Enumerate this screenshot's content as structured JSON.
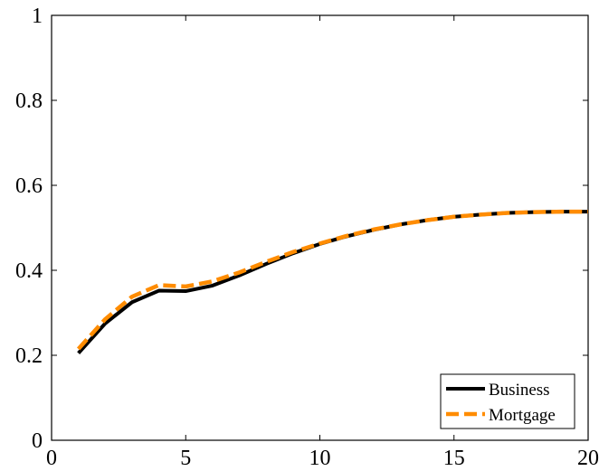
{
  "chart_data": {
    "type": "line",
    "title": "",
    "xlabel": "",
    "ylabel": "",
    "xlim": [
      0,
      20
    ],
    "ylim": [
      0,
      1
    ],
    "xticks": [
      0,
      5,
      10,
      15,
      20
    ],
    "yticks": [
      0,
      0.2,
      0.4,
      0.6,
      0.8,
      1
    ],
    "x_tick_labels": [
      "0",
      "5",
      "10",
      "15",
      "20"
    ],
    "y_tick_labels": [
      "0",
      "0.2",
      "0.4",
      "0.6",
      "0.8",
      "1"
    ],
    "grid": false,
    "legend_position": "bottom-right",
    "x": [
      1,
      2,
      3,
      4,
      5,
      6,
      7,
      8,
      9,
      10,
      11,
      12,
      13,
      14,
      15,
      16,
      17,
      18,
      19,
      20
    ],
    "series": [
      {
        "name": "Business",
        "color": "#000000",
        "style": "solid",
        "values": [
          0.205,
          0.275,
          0.325,
          0.352,
          0.351,
          0.364,
          0.388,
          0.415,
          0.44,
          0.462,
          0.48,
          0.495,
          0.508,
          0.518,
          0.526,
          0.531,
          0.535,
          0.537,
          0.538,
          0.538
        ]
      },
      {
        "name": "Mortgage",
        "color": "#FF8C00",
        "style": "dashed",
        "values": [
          0.215,
          0.285,
          0.338,
          0.365,
          0.362,
          0.374,
          0.395,
          0.42,
          0.443,
          0.463,
          0.481,
          0.496,
          0.508,
          0.518,
          0.526,
          0.531,
          0.535,
          0.537,
          0.538,
          0.538
        ]
      }
    ]
  }
}
